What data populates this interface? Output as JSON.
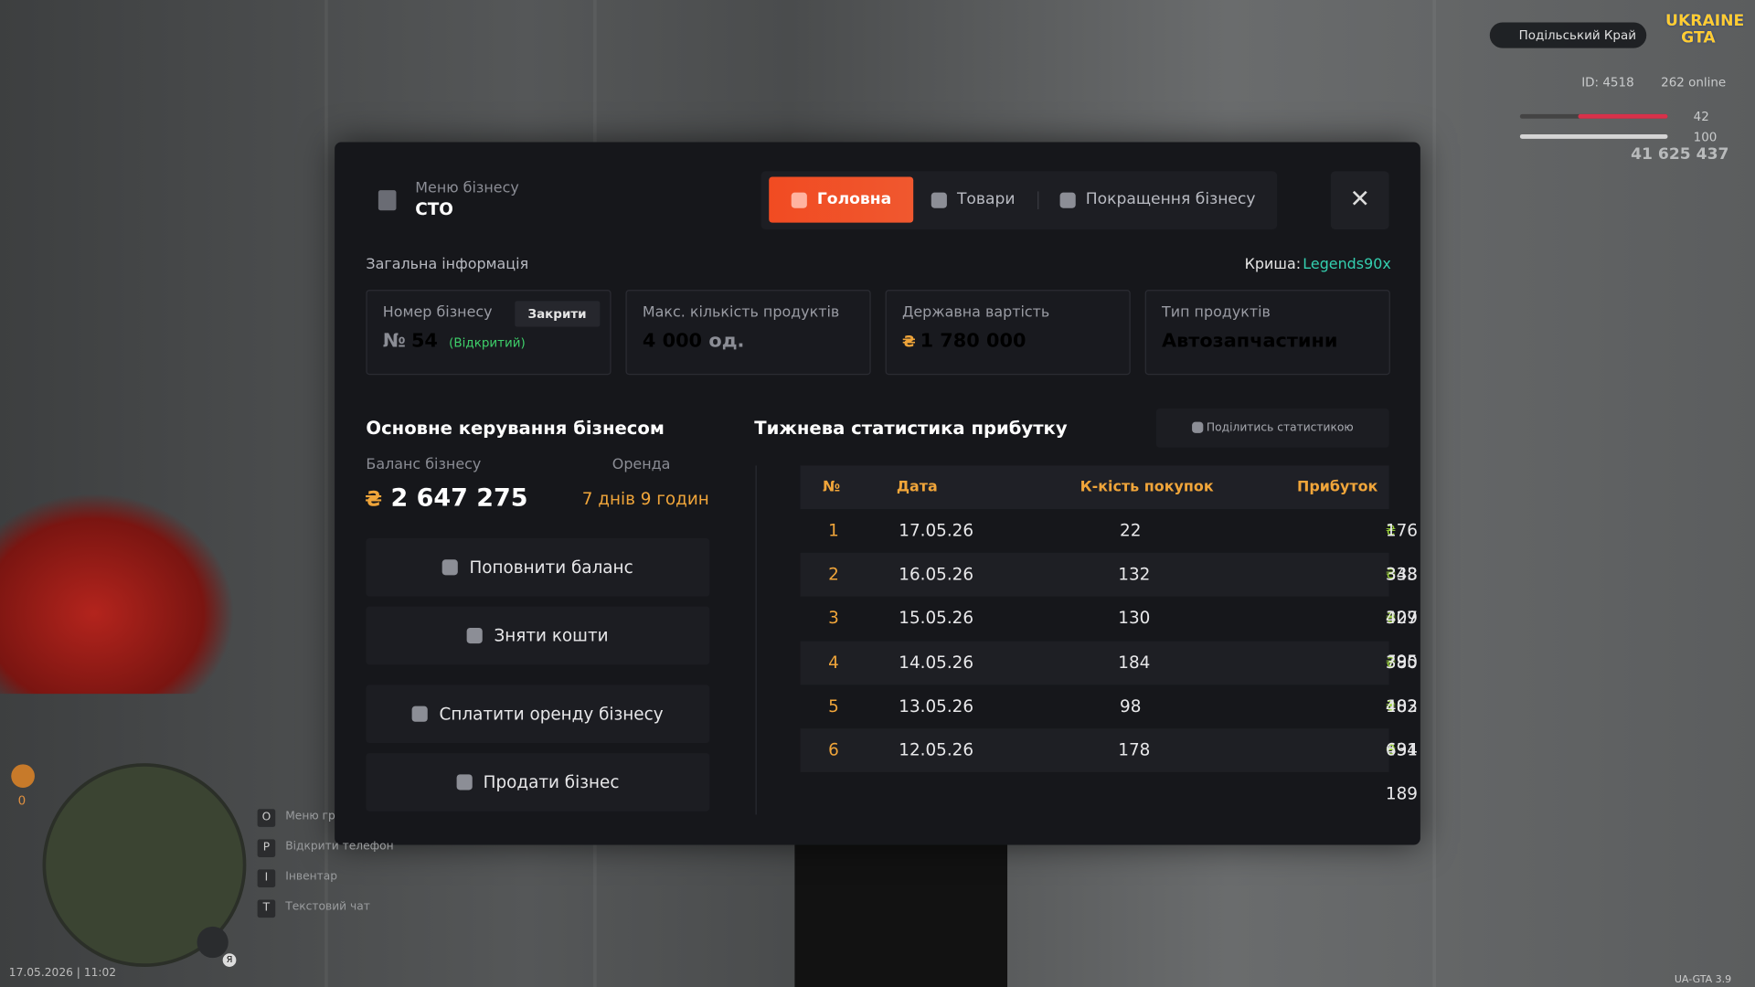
{
  "hud": {
    "server": "Подільський Край",
    "logo": [
      "UKRAINE",
      "GTA"
    ],
    "id": "ID: 4518",
    "online": "262 online",
    "health": "42",
    "armor": "100",
    "money": "41 625 437",
    "wanted": "0",
    "mic_key": "Я",
    "datetime": "17.05.2026 | 11:02",
    "version": "UA-GTA 3.9",
    "hints": [
      {
        "key": "O",
        "label": "Меню гр"
      },
      {
        "key": "P",
        "label": "Відкрити телефон"
      },
      {
        "key": "I",
        "label": "Інвентар"
      },
      {
        "key": "T",
        "label": "Текстовий чат"
      }
    ]
  },
  "modal": {
    "header": {
      "subtitle": "Меню бізнесу",
      "title": "СТО"
    },
    "tabs": [
      "Головна",
      "Товари",
      "Покращення бізнесу"
    ],
    "info": {
      "title": "Загальна інформація",
      "roof_label": "Криша:",
      "roof_value": "Legends90x",
      "currency": "₴",
      "cards": [
        {
          "label": "Номер бізнесу",
          "button": "Закрити",
          "prefix": "№",
          "value": "54",
          "status": "(Відкритий)"
        },
        {
          "label": "Макс. кількість продуктів",
          "value": "4 000",
          "unit": "од."
        },
        {
          "label": "Державна вартість",
          "value": "1 780 000"
        },
        {
          "label": "Тип продуктів",
          "value": "Автозапчастини"
        }
      ]
    },
    "control": {
      "title": "Основне керування бізнесом",
      "balance_label": "Баланс бізнесу",
      "balance": "2 647 275",
      "rent_label": "Оренда",
      "rent": "7 днів 9 годин",
      "buttons": [
        "Поповнити баланс",
        "Зняти кошти",
        "Сплатити оренду бізнесу",
        "Продати бізнес"
      ]
    },
    "stats": {
      "title": "Тижнева статистика прибутку",
      "share": "Поділитись статистикою",
      "currency": "₴",
      "columns": [
        "№",
        "Дата",
        "К-кість покупок",
        "Прибуток"
      ],
      "rows": [
        [
          "1",
          "17.05.26",
          "22",
          "176 843"
        ],
        [
          "2",
          "16.05.26",
          "132",
          "338 307"
        ],
        [
          "3",
          "15.05.26",
          "130",
          "429 795"
        ],
        [
          "4",
          "14.05.26",
          "184",
          "380 182"
        ],
        [
          "5",
          "13.05.26",
          "98",
          "403 431"
        ],
        [
          "6",
          "12.05.26",
          "178",
          "694 189"
        ]
      ]
    }
  }
}
